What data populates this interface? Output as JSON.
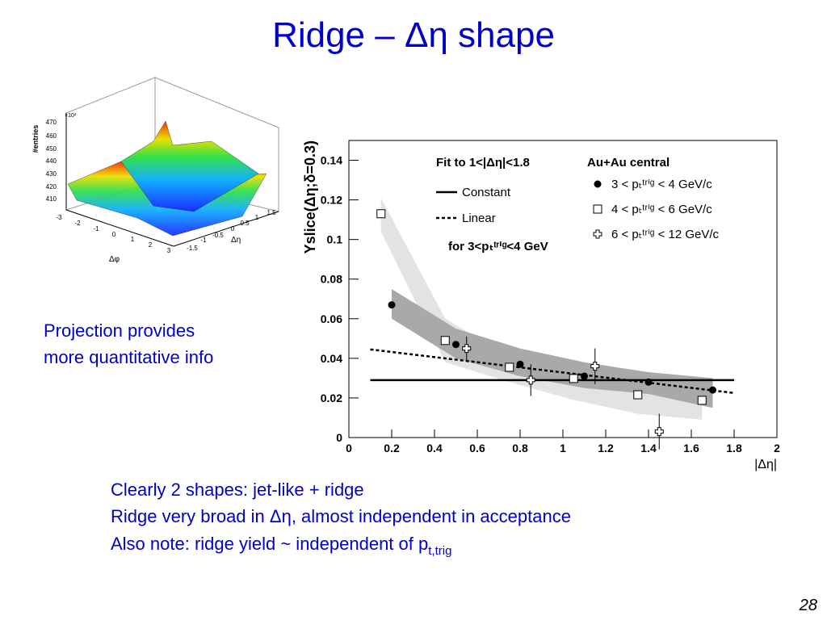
{
  "slide": {
    "title": "Ridge – Δη shape",
    "side_note": [
      "Projection provides",
      "more quantitative info"
    ],
    "bullets": [
      "Clearly 2 shapes: jet-like + ridge",
      "Ridge very broad in Δη, almost independent in acceptance",
      "Also note: ridge yield ~ independent of p"
    ],
    "bullet_subscript": "t,trig",
    "page_number": "28"
  },
  "inset": {
    "z_label": "#entries",
    "z_multiplier": "×10³",
    "z_ticks": [
      "470",
      "460",
      "450",
      "440",
      "430",
      "420",
      "410"
    ],
    "phi_label": "Δφ",
    "phi_ticks": [
      "-3",
      "-2",
      "-1",
      "0",
      "1",
      "2",
      "3"
    ],
    "eta_label": "Δη",
    "eta_ticks": [
      "-1.5",
      "-1",
      "-0.5",
      "0",
      "0.5",
      "1",
      "1.5"
    ]
  },
  "chart_data": {
    "type": "scatter",
    "x_label": "|Δη|",
    "y_label": "Yslice(Δη;δ=0.3)",
    "xlim": [
      0,
      2
    ],
    "xticks": [
      0,
      0.2,
      0.4,
      0.6,
      0.8,
      1,
      1.2,
      1.4,
      1.6,
      1.8,
      2
    ],
    "ylim": [
      0,
      0.15
    ],
    "yticks": [
      0,
      0.02,
      0.04,
      0.06,
      0.08,
      0.1,
      0.12,
      0.14
    ],
    "fit_title": "Fit to 1<|Δη|<1.8",
    "fit_note": "for 3<pₜᵗʳⁱᵍ<4 GeV",
    "legend_title": "Au+Au central",
    "fits": [
      {
        "name": "Constant",
        "style": "solid",
        "x": [
          0.1,
          1.8
        ],
        "values": [
          0.029,
          0.029
        ]
      },
      {
        "name": "Linear",
        "style": "dashed",
        "x": [
          0.1,
          1.8
        ],
        "values": [
          0.0445,
          0.0225
        ]
      }
    ],
    "bands": [
      {
        "color": "#e3e3e3",
        "x": [
          0.15,
          0.45,
          0.75,
          1.05,
          1.35,
          1.65
        ],
        "high": [
          0.121,
          0.06,
          0.041,
          0.034,
          0.027,
          0.025
        ],
        "low": [
          0.104,
          0.038,
          0.028,
          0.019,
          0.012,
          0.009
        ]
      },
      {
        "color": "#a9a9a9",
        "x": [
          0.2,
          0.5,
          0.8,
          1.1,
          1.4,
          1.7
        ],
        "high": [
          0.075,
          0.055,
          0.045,
          0.038,
          0.033,
          0.03
        ],
        "low": [
          0.06,
          0.04,
          0.031,
          0.025,
          0.022,
          0.015
        ]
      }
    ],
    "series": [
      {
        "name": "3 < pₜᵗʳⁱᵍ < 4 GeV/c",
        "marker": "circle",
        "color": "#000000",
        "x": [
          0.2,
          0.5,
          0.8,
          1.1,
          1.4,
          1.7
        ],
        "values": [
          0.067,
          0.047,
          0.037,
          0.031,
          0.028,
          0.024
        ]
      },
      {
        "name": "4 < pₜᵗʳⁱᵍ < 6 GeV/c",
        "marker": "square",
        "color": "#000000",
        "x": [
          0.15,
          0.45,
          0.75,
          1.05,
          1.35,
          1.65
        ],
        "values": [
          0.113,
          0.049,
          0.0355,
          0.0298,
          0.0216,
          0.0188
        ]
      },
      {
        "name": "6 < pₜᵗʳⁱᵍ < 12 GeV/c",
        "marker": "cross",
        "color": "#000000",
        "x": [
          0.55,
          0.85,
          1.15,
          1.45
        ],
        "values": [
          0.045,
          0.029,
          0.036,
          0.003
        ],
        "errors": [
          0.006,
          0.008,
          0.009,
          0.009
        ]
      }
    ]
  }
}
